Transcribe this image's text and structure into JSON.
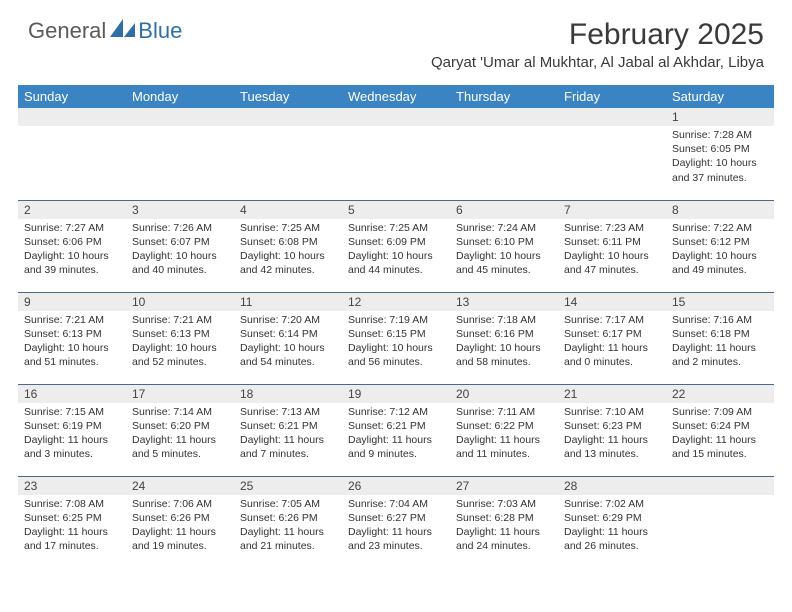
{
  "brand": {
    "general": "General",
    "blue": "Blue"
  },
  "header": {
    "month_title": "February 2025",
    "location": "Qaryat 'Umar al Mukhtar, Al Jabal al Akhdar, Libya"
  },
  "colors": {
    "header_bg": "#3b84c4",
    "header_text": "#ffffff",
    "daynum_bg": "#ededed",
    "cell_border": "#4a6a88",
    "logo_blue": "#2f6fa8",
    "text": "#333333"
  },
  "weekdays": [
    "Sunday",
    "Monday",
    "Tuesday",
    "Wednesday",
    "Thursday",
    "Friday",
    "Saturday"
  ],
  "weeks": [
    [
      null,
      null,
      null,
      null,
      null,
      null,
      {
        "n": "1",
        "sunrise": "Sunrise: 7:28 AM",
        "sunset": "Sunset: 6:05 PM",
        "daylight": "Daylight: 10 hours and 37 minutes."
      }
    ],
    [
      {
        "n": "2",
        "sunrise": "Sunrise: 7:27 AM",
        "sunset": "Sunset: 6:06 PM",
        "daylight": "Daylight: 10 hours and 39 minutes."
      },
      {
        "n": "3",
        "sunrise": "Sunrise: 7:26 AM",
        "sunset": "Sunset: 6:07 PM",
        "daylight": "Daylight: 10 hours and 40 minutes."
      },
      {
        "n": "4",
        "sunrise": "Sunrise: 7:25 AM",
        "sunset": "Sunset: 6:08 PM",
        "daylight": "Daylight: 10 hours and 42 minutes."
      },
      {
        "n": "5",
        "sunrise": "Sunrise: 7:25 AM",
        "sunset": "Sunset: 6:09 PM",
        "daylight": "Daylight: 10 hours and 44 minutes."
      },
      {
        "n": "6",
        "sunrise": "Sunrise: 7:24 AM",
        "sunset": "Sunset: 6:10 PM",
        "daylight": "Daylight: 10 hours and 45 minutes."
      },
      {
        "n": "7",
        "sunrise": "Sunrise: 7:23 AM",
        "sunset": "Sunset: 6:11 PM",
        "daylight": "Daylight: 10 hours and 47 minutes."
      },
      {
        "n": "8",
        "sunrise": "Sunrise: 7:22 AM",
        "sunset": "Sunset: 6:12 PM",
        "daylight": "Daylight: 10 hours and 49 minutes."
      }
    ],
    [
      {
        "n": "9",
        "sunrise": "Sunrise: 7:21 AM",
        "sunset": "Sunset: 6:13 PM",
        "daylight": "Daylight: 10 hours and 51 minutes."
      },
      {
        "n": "10",
        "sunrise": "Sunrise: 7:21 AM",
        "sunset": "Sunset: 6:13 PM",
        "daylight": "Daylight: 10 hours and 52 minutes."
      },
      {
        "n": "11",
        "sunrise": "Sunrise: 7:20 AM",
        "sunset": "Sunset: 6:14 PM",
        "daylight": "Daylight: 10 hours and 54 minutes."
      },
      {
        "n": "12",
        "sunrise": "Sunrise: 7:19 AM",
        "sunset": "Sunset: 6:15 PM",
        "daylight": "Daylight: 10 hours and 56 minutes."
      },
      {
        "n": "13",
        "sunrise": "Sunrise: 7:18 AM",
        "sunset": "Sunset: 6:16 PM",
        "daylight": "Daylight: 10 hours and 58 minutes."
      },
      {
        "n": "14",
        "sunrise": "Sunrise: 7:17 AM",
        "sunset": "Sunset: 6:17 PM",
        "daylight": "Daylight: 11 hours and 0 minutes."
      },
      {
        "n": "15",
        "sunrise": "Sunrise: 7:16 AM",
        "sunset": "Sunset: 6:18 PM",
        "daylight": "Daylight: 11 hours and 2 minutes."
      }
    ],
    [
      {
        "n": "16",
        "sunrise": "Sunrise: 7:15 AM",
        "sunset": "Sunset: 6:19 PM",
        "daylight": "Daylight: 11 hours and 3 minutes."
      },
      {
        "n": "17",
        "sunrise": "Sunrise: 7:14 AM",
        "sunset": "Sunset: 6:20 PM",
        "daylight": "Daylight: 11 hours and 5 minutes."
      },
      {
        "n": "18",
        "sunrise": "Sunrise: 7:13 AM",
        "sunset": "Sunset: 6:21 PM",
        "daylight": "Daylight: 11 hours and 7 minutes."
      },
      {
        "n": "19",
        "sunrise": "Sunrise: 7:12 AM",
        "sunset": "Sunset: 6:21 PM",
        "daylight": "Daylight: 11 hours and 9 minutes."
      },
      {
        "n": "20",
        "sunrise": "Sunrise: 7:11 AM",
        "sunset": "Sunset: 6:22 PM",
        "daylight": "Daylight: 11 hours and 11 minutes."
      },
      {
        "n": "21",
        "sunrise": "Sunrise: 7:10 AM",
        "sunset": "Sunset: 6:23 PM",
        "daylight": "Daylight: 11 hours and 13 minutes."
      },
      {
        "n": "22",
        "sunrise": "Sunrise: 7:09 AM",
        "sunset": "Sunset: 6:24 PM",
        "daylight": "Daylight: 11 hours and 15 minutes."
      }
    ],
    [
      {
        "n": "23",
        "sunrise": "Sunrise: 7:08 AM",
        "sunset": "Sunset: 6:25 PM",
        "daylight": "Daylight: 11 hours and 17 minutes."
      },
      {
        "n": "24",
        "sunrise": "Sunrise: 7:06 AM",
        "sunset": "Sunset: 6:26 PM",
        "daylight": "Daylight: 11 hours and 19 minutes."
      },
      {
        "n": "25",
        "sunrise": "Sunrise: 7:05 AM",
        "sunset": "Sunset: 6:26 PM",
        "daylight": "Daylight: 11 hours and 21 minutes."
      },
      {
        "n": "26",
        "sunrise": "Sunrise: 7:04 AM",
        "sunset": "Sunset: 6:27 PM",
        "daylight": "Daylight: 11 hours and 23 minutes."
      },
      {
        "n": "27",
        "sunrise": "Sunrise: 7:03 AM",
        "sunset": "Sunset: 6:28 PM",
        "daylight": "Daylight: 11 hours and 24 minutes."
      },
      {
        "n": "28",
        "sunrise": "Sunrise: 7:02 AM",
        "sunset": "Sunset: 6:29 PM",
        "daylight": "Daylight: 11 hours and 26 minutes."
      },
      null
    ]
  ]
}
